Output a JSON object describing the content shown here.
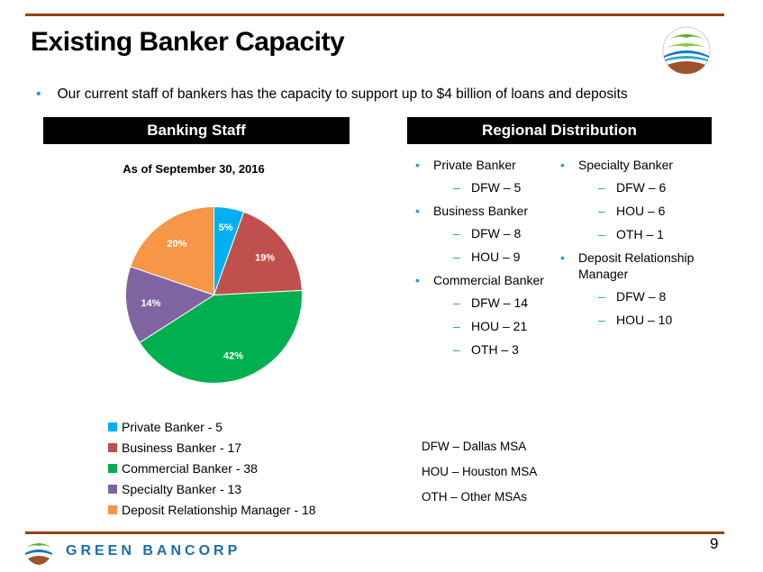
{
  "header": {
    "title": "Existing Banker Capacity",
    "bullet": "Our current staff of bankers has the capacity to support up to $4 billion of loans and deposits"
  },
  "sections": {
    "left_title": "Banking Staff",
    "right_title": "Regional Distribution"
  },
  "chart_data": {
    "type": "pie",
    "title": "As of September 30, 2016",
    "categories": [
      "Private Banker",
      "Business Banker",
      "Commercial Banker",
      "Specialty Banker",
      "Deposit Relationship Manager"
    ],
    "values": [
      5,
      17,
      38,
      13,
      18
    ],
    "data_labels": [
      "5%",
      "19%",
      "42%",
      "14%",
      "20%"
    ],
    "colors": [
      "#00b0f0",
      "#c0504d",
      "#00b050",
      "#8064a2",
      "#f79646"
    ],
    "legend_entries": [
      "Private Banker - 5",
      "Business Banker - 17",
      "Commercial Banker - 38",
      "Specialty Banker - 13",
      "Deposit Relationship Manager - 18"
    ],
    "legend_placement": "bottom"
  },
  "regional": {
    "left": [
      {
        "name": "Private Banker",
        "items": [
          "DFW – 5"
        ]
      },
      {
        "name": "Business Banker",
        "items": [
          "DFW – 8",
          "HOU – 9"
        ]
      },
      {
        "name": "Commercial Banker",
        "items": [
          "DFW – 14",
          "HOU – 21",
          "OTH – 3"
        ]
      }
    ],
    "right": [
      {
        "name": "Specialty Banker",
        "items": [
          "DFW – 6",
          "HOU – 6",
          "OTH – 1"
        ]
      },
      {
        "name": "Deposit Relationship Manager",
        "items": [
          "DFW – 8",
          "HOU – 10"
        ]
      }
    ]
  },
  "abbreviations": [
    "DFW – Dallas MSA",
    "HOU – Houston MSA",
    "OTH – Other MSAs"
  ],
  "footer": {
    "company": "GREEN BANCORP",
    "page_number": "9"
  },
  "icons": {
    "bullet": "bullet-dot-icon",
    "sub_bullet": "dash-icon",
    "logo": "green-bancorp-logo-icon"
  }
}
